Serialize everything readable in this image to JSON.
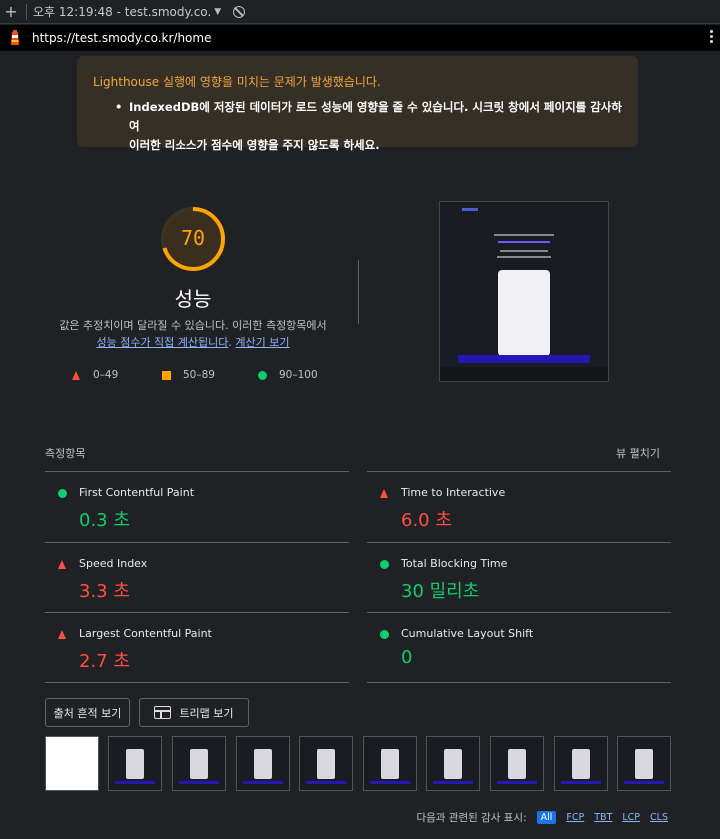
{
  "browser": {
    "tab_title": "오후 12:19:48 - test.smody.co.",
    "url": "https://test.smody.co.kr/home"
  },
  "warning": {
    "title": "Lighthouse 실행에 영향을 미치는 문제가 발생했습니다.",
    "line1": "IndexedDB에 저장된 데이터가 로드 성능에 영향을 줄 수 있습니다. 시크릿 창에서 페이지를 감사하여",
    "line2": "이러한 리소스가 점수에 영향을 주지 않도록 하세요."
  },
  "gauge": {
    "score": "70",
    "score_fraction": 0.7,
    "label": "성능",
    "color": "#ffa400"
  },
  "description": {
    "text": "값은 추정치이며 달라질 수 있습니다. 이러한 측정항목에서",
    "link1": "성능 점수가 직접 계산됩니다",
    "sep": ".",
    "link2": "계산기 보기"
  },
  "legend": {
    "fail": "0–49",
    "average": "50–89",
    "pass": "90–100"
  },
  "metrics_section": {
    "title": "측정항목",
    "toggle": "뷰 펼치기"
  },
  "metrics": [
    {
      "name": "First Contentful Paint",
      "value": "0.3 초",
      "status": "pass"
    },
    {
      "name": "Time to Interactive",
      "value": "6.0 초",
      "status": "fail"
    },
    {
      "name": "Speed Index",
      "value": "3.3 초",
      "status": "fail"
    },
    {
      "name": "Total Blocking Time",
      "value": "30 밀리초",
      "status": "pass"
    },
    {
      "name": "Largest Contentful Paint",
      "value": "2.7 초",
      "status": "fail"
    },
    {
      "name": "Cumulative Layout Shift",
      "value": "0",
      "status": "pass"
    }
  ],
  "buttons": {
    "trace": "출처 흔적 보기",
    "treemap": "트리맵 보기"
  },
  "filters": {
    "label": "다음과 관련된 감사 표시:",
    "chips": [
      "All",
      "FCP",
      "TBT",
      "LCP",
      "CLS"
    ]
  },
  "colors": {
    "fail": "#ff4e42",
    "average": "#ffa400",
    "pass": "#0cce6b",
    "link": "#8ab4f8"
  }
}
